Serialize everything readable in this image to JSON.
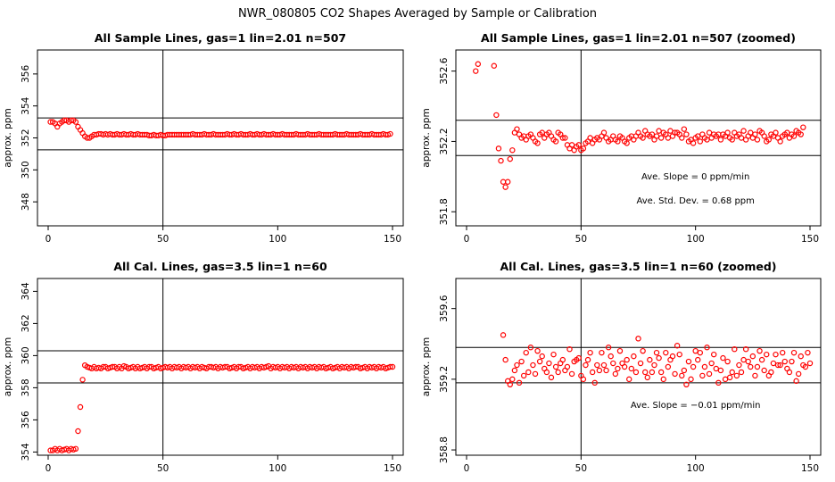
{
  "figure": {
    "suptitle": "NWR_080805  CO2 Shapes Averaged by Sample or Calibration"
  },
  "chart_data": [
    {
      "type": "scatter",
      "title": "All Sample Lines, gas=1 lin=2.01 n=507",
      "xlabel": "",
      "ylabel": "approx. ppm",
      "xlim": [
        0,
        150
      ],
      "ylim": [
        346.5,
        357.5
      ],
      "xticks": [
        0,
        50,
        100,
        150
      ],
      "yticks": [
        348,
        350,
        352,
        354,
        356
      ],
      "hlines": [
        353.25,
        351.25
      ],
      "vline": 50,
      "annotations": [],
      "series": [
        {
          "x_start": 1,
          "x_step": 1,
          "values": [
            353,
            353,
            352.9,
            352.7,
            352.9,
            353,
            353.1,
            353.1,
            353,
            353.1,
            353.1,
            353,
            352.7,
            352.5,
            352.3,
            352.1,
            352,
            352,
            352.1,
            352.2,
            352.2,
            352.25,
            352.25,
            352.2,
            352.25,
            352.2,
            352.25,
            352.2,
            352.2,
            352.25,
            352.2,
            352.2,
            352.25,
            352.2,
            352.2,
            352.25,
            352.2,
            352.2,
            352.25,
            352.2,
            352.2,
            352.2,
            352.2,
            352.15,
            352.15,
            352.2,
            352.15,
            352.15,
            352.2,
            352.15,
            352.15,
            352.2,
            352.2,
            352.2,
            352.2,
            352.2,
            352.2,
            352.2,
            352.2,
            352.2,
            352.2,
            352.2,
            352.25,
            352.2,
            352.2,
            352.2,
            352.2,
            352.25,
            352.2,
            352.2,
            352.2,
            352.25,
            352.2,
            352.2,
            352.2,
            352.2,
            352.2,
            352.25,
            352.2,
            352.2,
            352.25,
            352.2,
            352.2,
            352.25,
            352.2,
            352.2,
            352.2,
            352.25,
            352.2,
            352.2,
            352.25,
            352.2,
            352.2,
            352.25,
            352.2,
            352.2,
            352.2,
            352.25,
            352.2,
            352.2,
            352.2,
            352.25,
            352.2,
            352.2,
            352.2,
            352.2,
            352.2,
            352.25,
            352.2,
            352.2,
            352.2,
            352.2,
            352.25,
            352.2,
            352.2,
            352.2,
            352.2,
            352.25,
            352.2,
            352.2,
            352.2,
            352.2,
            352.2,
            352.2,
            352.25,
            352.2,
            352.2,
            352.2,
            352.2,
            352.25,
            352.2,
            352.2,
            352.2,
            352.2,
            352.2,
            352.25,
            352.2,
            352.2,
            352.2,
            352.2,
            352.25,
            352.2,
            352.2,
            352.2,
            352.2,
            352.25,
            352.2,
            352.2,
            352.25
          ]
        }
      ]
    },
    {
      "type": "scatter",
      "title": "All Sample Lines, gas=1 lin=2.01 n=507 (zoomed)",
      "xlabel": "",
      "ylabel": "approx. ppm",
      "xlim": [
        0,
        150
      ],
      "ylim": [
        351.72,
        352.72
      ],
      "xticks": [
        0,
        50,
        100,
        150
      ],
      "yticks": [
        351.8,
        352.2,
        352.6
      ],
      "hlines": [
        352.32,
        352.12
      ],
      "vline": 50,
      "annotations": [
        "Ave. Slope =  0  ppm/min",
        "Ave. Std. Dev. = 0.68  ppm"
      ],
      "series": [
        {
          "x_start": 4,
          "x_step": 1,
          "values": [
            352.6,
            352.64,
            null,
            null,
            null,
            null,
            null,
            null,
            352.63,
            352.35,
            352.16,
            352.09,
            351.97,
            351.94,
            351.97,
            352.1,
            352.15,
            352.25,
            352.27,
            352.24,
            352.22,
            352.23,
            352.21,
            352.23,
            352.24,
            352.22,
            352.2,
            352.19,
            352.24,
            352.25,
            352.22,
            352.24,
            352.25,
            352.23,
            352.21,
            352.2,
            352.25,
            352.24,
            352.22,
            352.22,
            352.18,
            352.16,
            352.18,
            352.15,
            352.17,
            352.18,
            352.15,
            352.16,
            352.19,
            352.2,
            352.22,
            352.19,
            352.21,
            352.22,
            352.21,
            352.23,
            352.25,
            352.22,
            352.2,
            352.21,
            352.23,
            352.21,
            352.2,
            352.23,
            352.22,
            352.2,
            352.19,
            352.22,
            352.23,
            352.21,
            352.23,
            352.25,
            352.23,
            352.22,
            352.26,
            352.24,
            352.23,
            352.24,
            352.21,
            352.23,
            352.26,
            352.22,
            352.25,
            352.24,
            352.22,
            352.26,
            352.23,
            352.25,
            352.25,
            352.24,
            352.22,
            352.27,
            352.24,
            352.2,
            352.21,
            352.19,
            352.22,
            352.23,
            352.2,
            352.24,
            352.22,
            352.21,
            352.25,
            352.22,
            352.24,
            352.23,
            352.24,
            352.21,
            352.24,
            352.23,
            352.25,
            352.22,
            352.21,
            352.25,
            352.23,
            352.24,
            352.22,
            352.26,
            352.21,
            352.23,
            352.25,
            352.22,
            352.24,
            352.21,
            352.26,
            352.25,
            352.23,
            352.2,
            352.21,
            352.24,
            352.23,
            352.25,
            352.22,
            352.2,
            352.23,
            352.24,
            352.25,
            352.22,
            352.24,
            352.23,
            352.26,
            352.25,
            352.24,
            352.28
          ]
        }
      ]
    },
    {
      "type": "scatter",
      "title": "All Cal. Lines, gas=3.5 lin=1 n=60",
      "xlabel": "",
      "ylabel": "approx. ppm",
      "xlim": [
        0,
        150
      ],
      "ylim": [
        353.8,
        364.8
      ],
      "xticks": [
        0,
        50,
        100,
        150
      ],
      "yticks": [
        354,
        356,
        358,
        360,
        362,
        364
      ],
      "hlines": [
        360.3,
        358.3
      ],
      "vline": 50,
      "annotations": [],
      "series": [
        {
          "x_start": 1,
          "x_step": 1,
          "values": [
            354.1,
            354.1,
            354.2,
            354.1,
            354.2,
            354.1,
            354.15,
            354.2,
            354.1,
            354.2,
            354.15,
            354.2,
            355.3,
            356.8,
            358.5,
            359.4,
            359.3,
            359.25,
            359.2,
            359.3,
            359.2,
            359.25,
            359.2,
            359.3,
            359.3,
            359.2,
            359.25,
            359.3,
            359.3,
            359.2,
            359.3,
            359.2,
            359.35,
            359.3,
            359.2,
            359.25,
            359.3,
            359.2,
            359.3,
            359.2,
            359.25,
            359.3,
            359.2,
            359.3,
            359.3,
            359.2,
            359.25,
            359.3,
            359.2,
            359.25,
            359.3,
            359.25,
            359.3,
            359.2,
            359.3,
            359.25,
            359.3,
            359.2,
            359.3,
            359.25,
            359.3,
            359.2,
            359.3,
            359.25,
            359.3,
            359.2,
            359.3,
            359.25,
            359.2,
            359.3,
            359.3,
            359.25,
            359.3,
            359.2,
            359.3,
            359.25,
            359.3,
            359.3,
            359.2,
            359.25,
            359.3,
            359.2,
            359.3,
            359.3,
            359.2,
            359.25,
            359.3,
            359.2,
            359.3,
            359.25,
            359.3,
            359.2,
            359.3,
            359.25,
            359.3,
            359.35,
            359.2,
            359.3,
            359.25,
            359.3,
            359.2,
            359.3,
            359.25,
            359.3,
            359.2,
            359.3,
            359.25,
            359.3,
            359.2,
            359.3,
            359.25,
            359.3,
            359.2,
            359.3,
            359.25,
            359.3,
            359.2,
            359.3,
            359.25,
            359.3,
            359.2,
            359.25,
            359.3,
            359.2,
            359.25,
            359.3,
            359.2,
            359.3,
            359.25,
            359.3,
            359.2,
            359.3,
            359.25,
            359.3,
            359.3,
            359.2,
            359.25,
            359.3,
            359.2,
            359.3,
            359.25,
            359.3,
            359.2,
            359.3,
            359.25,
            359.3,
            359.2,
            359.25,
            359.3,
            359.3
          ]
        }
      ]
    },
    {
      "type": "scatter",
      "title": "All Cal. Lines, gas=3.5 lin=1 n=60 (zoomed)",
      "xlabel": "",
      "ylabel": "approx. ppm",
      "xlim": [
        0,
        150
      ],
      "ylim": [
        358.77,
        359.77
      ],
      "xticks": [
        0,
        50,
        100,
        150
      ],
      "yticks": [
        358.8,
        359.2,
        359.6
      ],
      "hlines": [
        359.38,
        359.18
      ],
      "vline": 50,
      "annotations": [
        "Ave. Slope =  −0.01  ppm/min"
      ],
      "series": [
        {
          "x_start": 16,
          "x_step": 1,
          "values": [
            359.45,
            359.31,
            359.19,
            359.17,
            359.2,
            359.25,
            359.28,
            359.18,
            359.3,
            359.22,
            359.35,
            359.24,
            359.38,
            359.28,
            359.23,
            359.36,
            359.3,
            359.33,
            359.26,
            359.24,
            359.29,
            359.21,
            359.34,
            359.27,
            359.24,
            359.29,
            359.31,
            359.25,
            359.27,
            359.37,
            359.23,
            359.3,
            359.31,
            359.32,
            359.22,
            359.2,
            359.28,
            359.31,
            359.35,
            359.24,
            359.18,
            359.28,
            359.25,
            359.35,
            359.28,
            359.25,
            359.38,
            359.33,
            359.29,
            359.23,
            359.26,
            359.36,
            359.29,
            359.27,
            359.31,
            359.2,
            359.26,
            359.33,
            359.24,
            359.43,
            359.29,
            359.36,
            359.24,
            359.21,
            359.31,
            359.24,
            359.28,
            359.35,
            359.32,
            359.24,
            359.2,
            359.35,
            359.27,
            359.31,
            359.33,
            359.23,
            359.39,
            359.34,
            359.22,
            359.25,
            359.17,
            359.3,
            359.2,
            359.27,
            359.36,
            359.31,
            359.35,
            359.22,
            359.27,
            359.38,
            359.23,
            359.29,
            359.34,
            359.26,
            359.18,
            359.25,
            359.32,
            359.2,
            359.3,
            359.21,
            359.24,
            359.37,
            359.22,
            359.28,
            359.24,
            359.31,
            359.37,
            359.3,
            359.27,
            359.33,
            359.22,
            359.27,
            359.36,
            359.31,
            359.25,
            359.34,
            359.22,
            359.24,
            359.29,
            359.34,
            359.28,
            359.28,
            359.35,
            359.3,
            359.26,
            359.24,
            359.3,
            359.35,
            359.19,
            359.23,
            359.33,
            359.28,
            359.27,
            359.35,
            359.29
          ]
        }
      ]
    }
  ],
  "colors": {
    "points": "#ff0000",
    "axes": "#000000",
    "background": "#ffffff"
  }
}
